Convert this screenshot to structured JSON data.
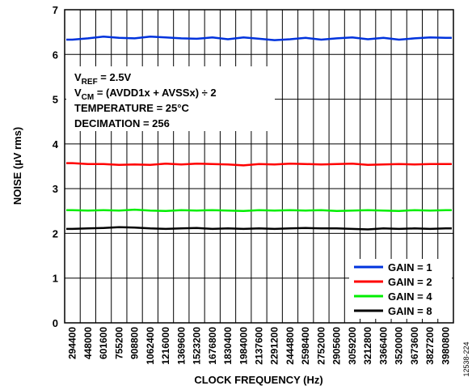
{
  "chart_data": {
    "type": "line",
    "xlabel": "CLOCK FREQUENCY (Hz)",
    "ylabel": "NOISE (µV rms)",
    "ylim": [
      0,
      7
    ],
    "yticks": [
      "0",
      "1",
      "2",
      "3",
      "4",
      "5",
      "6",
      "7"
    ],
    "categories": [
      "294400",
      "448000",
      "601600",
      "755200",
      "908800",
      "1062400",
      "1216000",
      "1369600",
      "1523200",
      "1676800",
      "1830400",
      "1984000",
      "2137600",
      "2291200",
      "2444800",
      "2598400",
      "2752000",
      "2905600",
      "3059200",
      "3212800",
      "3366400",
      "3520000",
      "3673600",
      "3827200",
      "3980800"
    ],
    "grid": true,
    "legend_position": "bottom-right",
    "annotation": {
      "line1_main": "V",
      "line1_sub": "REF",
      "line1_rest": " = 2.5V",
      "line2_main": "V",
      "line2_sub": "CM",
      "line2_rest": " = (AVDD1x + AVSSx) ÷ 2",
      "line3": "TEMPERATURE = 25°C",
      "line4": "DECIMATION = 256"
    },
    "figure_id": "12538-224",
    "series": [
      {
        "name": "GAIN = 1",
        "color": "#0033dd",
        "values": [
          6.33,
          6.36,
          6.4,
          6.37,
          6.36,
          6.4,
          6.38,
          6.36,
          6.35,
          6.38,
          6.34,
          6.38,
          6.35,
          6.32,
          6.34,
          6.37,
          6.33,
          6.36,
          6.38,
          6.34,
          6.37,
          6.33,
          6.36,
          6.38,
          6.37
        ]
      },
      {
        "name": "GAIN = 2",
        "color": "#ff0000",
        "values": [
          3.57,
          3.55,
          3.55,
          3.53,
          3.54,
          3.53,
          3.56,
          3.54,
          3.56,
          3.55,
          3.54,
          3.52,
          3.55,
          3.54,
          3.56,
          3.55,
          3.54,
          3.55,
          3.56,
          3.53,
          3.54,
          3.55,
          3.54,
          3.55,
          3.55
        ]
      },
      {
        "name": "GAIN = 4",
        "color": "#00ee00",
        "values": [
          2.52,
          2.51,
          2.52,
          2.51,
          2.53,
          2.51,
          2.5,
          2.52,
          2.51,
          2.52,
          2.51,
          2.5,
          2.52,
          2.51,
          2.52,
          2.51,
          2.52,
          2.5,
          2.51,
          2.52,
          2.51,
          2.5,
          2.52,
          2.51,
          2.52
        ]
      },
      {
        "name": "GAIN = 8",
        "color": "#000000",
        "values": [
          2.1,
          2.11,
          2.12,
          2.14,
          2.13,
          2.11,
          2.1,
          2.11,
          2.12,
          2.1,
          2.11,
          2.1,
          2.11,
          2.1,
          2.11,
          2.12,
          2.11,
          2.11,
          2.1,
          2.09,
          2.11,
          2.1,
          2.11,
          2.1,
          2.11
        ]
      }
    ]
  }
}
